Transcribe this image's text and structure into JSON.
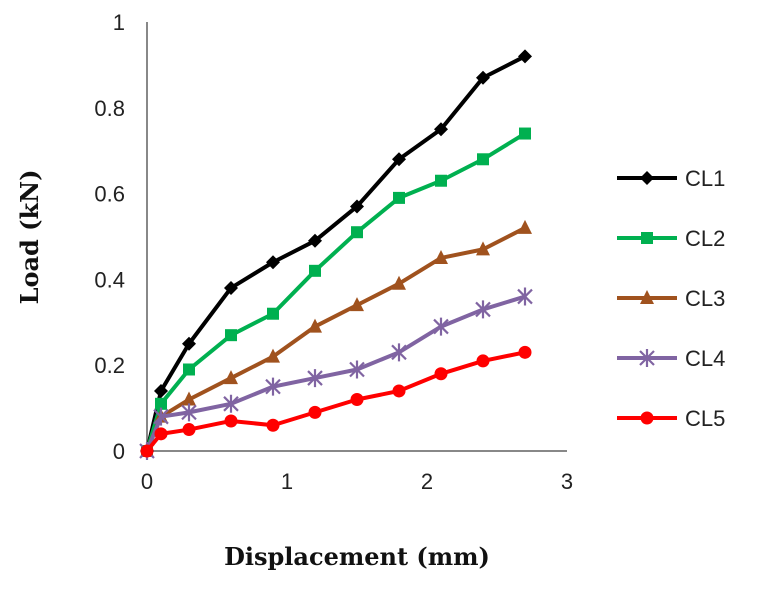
{
  "chart_data": {
    "type": "line",
    "title": "",
    "xlabel": "Displacement (mm)",
    "ylabel": "Load (kN)",
    "xlim": [
      0,
      3
    ],
    "ylim": [
      0,
      1
    ],
    "xticks": [
      "0",
      "1",
      "2",
      "3"
    ],
    "yticks": [
      "0",
      "0.2",
      "0.4",
      "0.6",
      "0.8",
      "1"
    ],
    "grid": false,
    "legend_position": "right",
    "x": [
      0,
      0.1,
      0.3,
      0.6,
      0.9,
      1.2,
      1.5,
      1.8,
      2.1,
      2.4,
      2.7
    ],
    "series": [
      {
        "name": "CL1",
        "color": "#000000",
        "marker": "diamond",
        "values": [
          0,
          0.14,
          0.25,
          0.38,
          0.44,
          0.49,
          0.57,
          0.68,
          0.75,
          0.87,
          0.92
        ]
      },
      {
        "name": "CL2",
        "color": "#00b050",
        "marker": "square",
        "values": [
          0,
          0.11,
          0.19,
          0.27,
          0.32,
          0.42,
          0.51,
          0.59,
          0.63,
          0.68,
          0.74
        ]
      },
      {
        "name": "CL3",
        "color": "#a0521e",
        "marker": "triangle",
        "values": [
          0,
          0.08,
          0.12,
          0.17,
          0.22,
          0.29,
          0.34,
          0.39,
          0.45,
          0.47,
          0.52
        ]
      },
      {
        "name": "CL4",
        "color": "#8064a2",
        "marker": "star",
        "values": [
          0,
          0.08,
          0.09,
          0.11,
          0.15,
          0.17,
          0.19,
          0.23,
          0.29,
          0.33,
          0.36
        ]
      },
      {
        "name": "CL5",
        "color": "#ff0000",
        "marker": "circle",
        "values": [
          0,
          0.04,
          0.05,
          0.07,
          0.06,
          0.09,
          0.12,
          0.14,
          0.18,
          0.21,
          0.23
        ]
      }
    ]
  }
}
